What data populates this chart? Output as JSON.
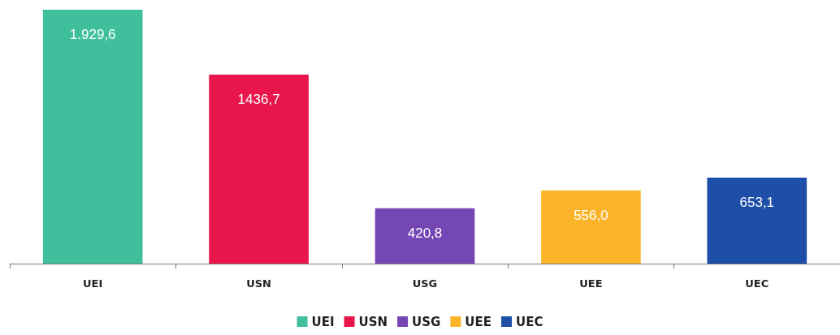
{
  "chart_data": {
    "type": "bar",
    "categories": [
      "UEI",
      "USN",
      "USG",
      "UEE",
      "UEC"
    ],
    "stacked": true,
    "legend": "bottom",
    "series": [
      {
        "name": "UEI",
        "color": "#3fbf9b",
        "values": [
          1929.6,
          null,
          null,
          null,
          null
        ],
        "value_labels": [
          "1.929,6",
          null,
          null,
          null,
          null
        ]
      },
      {
        "name": "USN",
        "color": "#e8164a",
        "values": [
          null,
          1436.7,
          null,
          null,
          null
        ],
        "value_labels": [
          null,
          "1436,7",
          null,
          null,
          null
        ]
      },
      {
        "name": "USG",
        "color": "#7547b4",
        "values": [
          null,
          null,
          420.8,
          null,
          null
        ],
        "value_labels": [
          null,
          null,
          "420,8",
          null,
          null
        ]
      },
      {
        "name": "UEE",
        "color": "#fbb42a",
        "values": [
          null,
          null,
          null,
          556.0,
          null
        ],
        "value_labels": [
          null,
          null,
          null,
          "556,0",
          null
        ]
      },
      {
        "name": "UEC",
        "color": "#1d4ea8",
        "values": [
          null,
          null,
          null,
          null,
          653.1
        ],
        "value_labels": [
          null,
          null,
          null,
          null,
          "653,1"
        ]
      }
    ]
  }
}
